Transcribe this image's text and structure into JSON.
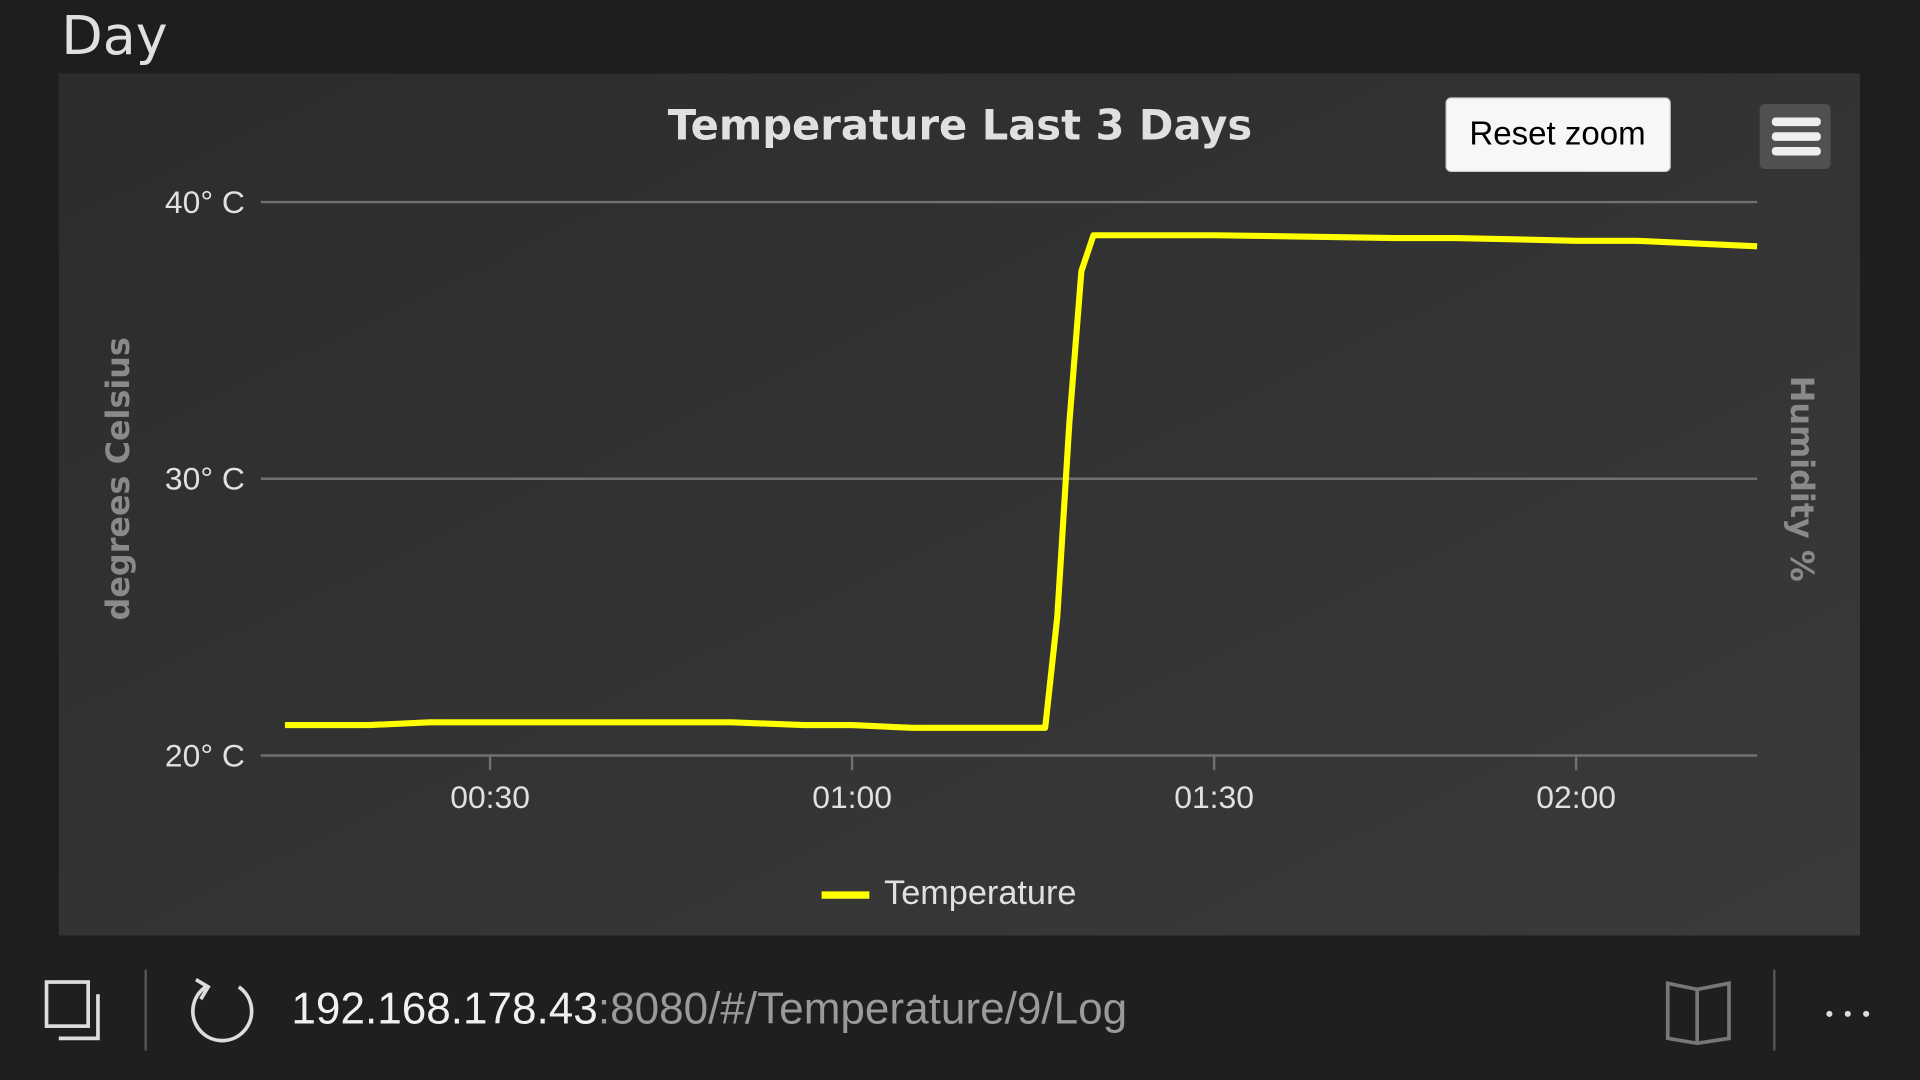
{
  "page": {
    "heading": "Day"
  },
  "chart_data": {
    "type": "line",
    "title": "Temperature Last 3 Days",
    "reset_zoom": "Reset zoom",
    "y_label": "degrees Celsius",
    "y2_label": "Humidity %",
    "x": [
      "00:13",
      "00:20",
      "00:25",
      "00:40",
      "00:50",
      "00:56",
      "01:00",
      "01:05",
      "01:15",
      "01:16",
      "01:17",
      "01:18",
      "01:19",
      "01:20",
      "01:30",
      "01:45",
      "01:50",
      "02:00",
      "02:05",
      "02:10",
      "02:15"
    ],
    "series": [
      {
        "name": "Temperature",
        "color": "#ffff00",
        "values": [
          21.1,
          21.1,
          21.2,
          21.2,
          21.2,
          21.1,
          21.1,
          21.0,
          21.0,
          21.0,
          25.0,
          32.0,
          37.5,
          38.8,
          38.8,
          38.7,
          38.7,
          38.6,
          38.6,
          38.5,
          38.4
        ]
      }
    ],
    "xlim": [
      "00:11",
      "02:15"
    ],
    "xticks": [
      "00:30",
      "01:00",
      "01:30",
      "02:00"
    ],
    "ylim": [
      20,
      40
    ],
    "yticks": [
      {
        "value": 20,
        "label": "20° C"
      },
      {
        "value": 30,
        "label": "30° C"
      },
      {
        "value": 40,
        "label": "40° C"
      }
    ],
    "grid": true
  },
  "browser": {
    "url_host": "192.168.178.43",
    "url_path": ":8080/#/Temperature/9/Log"
  }
}
